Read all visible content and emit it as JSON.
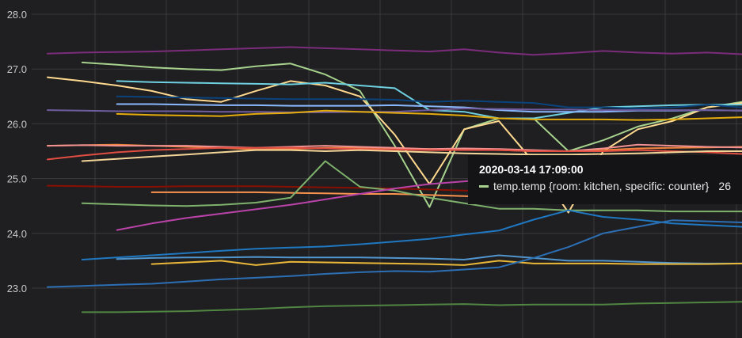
{
  "chart_data": {
    "type": "line",
    "grid": true,
    "ylim": [
      22.1,
      28.0
    ],
    "yticks": [
      "28.0",
      "27.0",
      "26.0",
      "25.0",
      "24.0",
      "23.0"
    ],
    "x": [
      0,
      5,
      10,
      15,
      20,
      25,
      30,
      35,
      40,
      45,
      50,
      55,
      60,
      65,
      70,
      75,
      80,
      85,
      90,
      95,
      100
    ],
    "series": [
      {
        "color": "#7b2c7a",
        "values": [
          27.28,
          27.3,
          27.31,
          27.32,
          27.34,
          27.36,
          27.38,
          27.4,
          27.38,
          27.36,
          27.34,
          27.32,
          27.36,
          27.3,
          27.26,
          27.29,
          27.33,
          27.3,
          27.28,
          27.3,
          27.27
        ]
      },
      {
        "color": "#a6d28d",
        "values": [
          null,
          27.12,
          27.08,
          27.03,
          27.0,
          26.98,
          27.05,
          27.1,
          26.9,
          26.6,
          25.6,
          24.48,
          25.9,
          26.1,
          26.1,
          25.5,
          25.7,
          25.95,
          26.1,
          26.3,
          26.4
        ]
      },
      {
        "color": "#ffd98f",
        "values": [
          26.85,
          26.78,
          26.7,
          26.6,
          26.45,
          26.4,
          26.6,
          26.78,
          26.7,
          26.5,
          25.8,
          24.9,
          25.9,
          26.05,
          25.3,
          24.38,
          25.5,
          25.9,
          26.05,
          26.3,
          26.38
        ]
      },
      {
        "color": "#6ed0e0",
        "values": [
          null,
          null,
          26.78,
          26.76,
          26.75,
          26.74,
          26.73,
          26.72,
          26.75,
          26.7,
          26.65,
          26.25,
          26.22,
          26.1,
          26.1,
          26.2,
          26.3,
          26.32,
          26.34,
          26.35,
          26.35
        ]
      },
      {
        "color": "#0a437c",
        "values": [
          null,
          null,
          26.5,
          26.49,
          26.48,
          26.47,
          26.46,
          26.45,
          26.45,
          26.45,
          26.44,
          26.4,
          26.42,
          26.4,
          26.38,
          26.3,
          26.3,
          26.28,
          26.3,
          26.35,
          26.3
        ]
      },
      {
        "color": "#8ab8ff",
        "values": [
          null,
          null,
          26.36,
          26.36,
          26.35,
          26.34,
          26.34,
          26.33,
          26.33,
          26.33,
          26.34,
          26.32,
          26.3,
          26.25,
          26.22,
          26.22,
          26.22,
          26.24,
          26.24,
          26.25,
          26.24
        ]
      },
      {
        "color": "#705da0",
        "values": [
          26.25,
          26.24,
          26.23,
          26.23,
          26.23,
          26.22,
          26.22,
          26.21,
          26.21,
          26.22,
          26.22,
          26.25,
          26.28,
          26.27,
          26.26,
          26.26,
          26.25,
          26.25,
          26.25,
          26.25,
          26.24
        ]
      },
      {
        "color": "#e5ac0e",
        "values": [
          null,
          null,
          26.18,
          26.16,
          26.15,
          26.14,
          26.18,
          26.2,
          26.24,
          26.22,
          26.2,
          26.18,
          26.15,
          26.1,
          26.08,
          26.08,
          26.08,
          26.07,
          26.08,
          26.1,
          26.12
        ]
      },
      {
        "color": "#ef843c",
        "values": [
          25.6,
          25.61,
          25.62,
          25.6,
          25.58,
          25.56,
          25.53,
          25.54,
          25.56,
          25.56,
          25.55,
          25.54,
          25.53,
          25.52,
          25.5,
          25.5,
          25.52,
          25.55,
          25.56,
          25.57,
          25.58
        ]
      },
      {
        "color": "#f29191",
        "values": [
          25.6,
          25.61,
          25.6,
          25.6,
          25.6,
          25.58,
          25.56,
          25.58,
          25.6,
          25.58,
          25.56,
          25.54,
          25.55,
          25.54,
          25.52,
          25.5,
          25.55,
          25.62,
          25.6,
          25.58,
          25.57
        ]
      },
      {
        "color": "#e24d42",
        "values": [
          25.35,
          25.42,
          25.48,
          25.52,
          25.54,
          25.56,
          25.56,
          25.56,
          25.55,
          25.54,
          25.53,
          25.52,
          25.52,
          25.52,
          25.5,
          25.5,
          25.5,
          25.52,
          25.5,
          25.48,
          25.45
        ]
      },
      {
        "color": "#f4d598",
        "values": [
          null,
          25.32,
          25.36,
          25.4,
          25.44,
          25.48,
          25.52,
          25.52,
          25.5,
          25.52,
          25.5,
          25.48,
          25.46,
          25.45,
          25.44,
          25.44,
          25.45,
          25.46,
          25.48,
          25.5,
          25.5
        ]
      },
      {
        "color": "#890f02",
        "values": [
          24.87,
          24.86,
          24.85,
          24.85,
          24.86,
          24.86,
          24.86,
          24.85,
          24.84,
          24.83,
          24.82,
          24.8,
          24.78,
          24.76,
          24.75,
          24.74,
          24.73,
          24.72,
          24.72,
          24.71,
          24.7
        ]
      },
      {
        "color": "#f9934e",
        "values": [
          null,
          null,
          null,
          24.75,
          24.75,
          24.75,
          24.75,
          24.74,
          24.73,
          24.72,
          24.72,
          24.7,
          24.68,
          24.66,
          24.65,
          24.64,
          24.63,
          24.62,
          24.62,
          24.61,
          24.6
        ]
      },
      {
        "color": "#7eb26d",
        "values": [
          null,
          24.55,
          24.53,
          24.51,
          24.5,
          24.52,
          24.56,
          24.65,
          25.32,
          24.85,
          24.78,
          24.65,
          24.55,
          24.45,
          24.45,
          24.42,
          24.42,
          24.42,
          24.4,
          24.4,
          24.4
        ]
      },
      {
        "color": "#ba43a9",
        "values": [
          null,
          null,
          24.06,
          24.18,
          24.28,
          24.36,
          24.44,
          24.52,
          24.62,
          24.72,
          24.82,
          24.9,
          24.95,
          25.0,
          25.05,
          25.1,
          25.12,
          25.15,
          25.2,
          25.25,
          25.3
        ]
      },
      {
        "color": "#1f78c1",
        "values": [
          null,
          23.52,
          23.56,
          23.6,
          23.64,
          23.68,
          23.72,
          23.74,
          23.76,
          23.8,
          23.85,
          23.9,
          23.98,
          24.05,
          24.25,
          24.42,
          24.3,
          24.25,
          24.18,
          24.15,
          24.12
        ]
      },
      {
        "color": "#5195ce",
        "values": [
          null,
          null,
          23.53,
          23.55,
          23.56,
          23.56,
          23.57,
          23.56,
          23.56,
          23.56,
          23.55,
          23.54,
          23.52,
          23.6,
          23.55,
          23.5,
          23.5,
          23.48,
          23.46,
          23.45,
          23.45
        ]
      },
      {
        "color": "#eab839",
        "values": [
          null,
          null,
          null,
          23.44,
          23.47,
          23.5,
          23.42,
          23.48,
          23.47,
          23.46,
          23.45,
          23.44,
          23.42,
          23.5,
          23.45,
          23.45,
          23.45,
          23.44,
          23.44,
          23.44,
          23.45
        ]
      },
      {
        "color": "#2c6fb5",
        "values": [
          23.02,
          23.04,
          23.06,
          23.08,
          23.12,
          23.16,
          23.19,
          23.22,
          23.26,
          23.29,
          23.31,
          23.3,
          23.34,
          23.38,
          23.55,
          23.75,
          24.0,
          24.12,
          24.24,
          24.22,
          24.2
        ]
      },
      {
        "color": "#508642",
        "values": [
          null,
          22.56,
          22.56,
          22.57,
          22.58,
          22.6,
          22.62,
          22.65,
          22.67,
          22.68,
          22.69,
          22.7,
          22.71,
          22.69,
          22.7,
          22.7,
          22.7,
          22.72,
          22.73,
          22.74,
          22.75
        ]
      }
    ]
  },
  "tooltip": {
    "time": "2020-03-14 17:09:00",
    "series_label": "temp.temp {room: kitchen, specific: counter}",
    "value": "26",
    "color": "#a6d28d"
  }
}
